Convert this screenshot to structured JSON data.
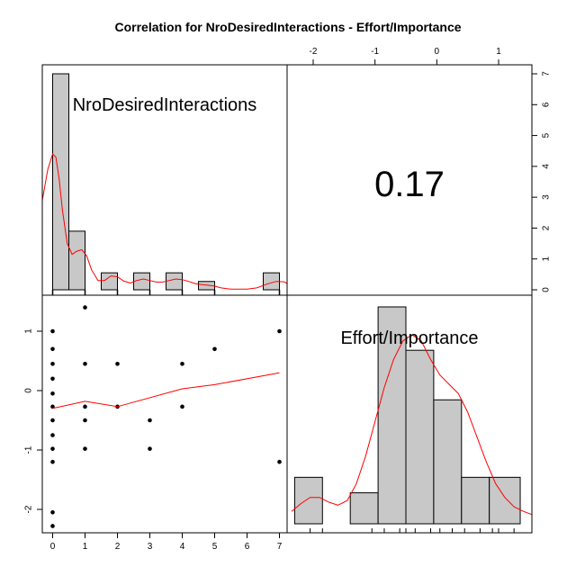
{
  "chart_data": {
    "type": "scatter-matrix",
    "title": "Correlation  for NroDesiredInteractions - Effort/Importance",
    "variables": [
      "NroDesiredInteractions",
      "Effort/Importance"
    ],
    "correlation": "0.17",
    "axes": {
      "nro": {
        "range": [
          0,
          7
        ],
        "ticks": [
          0,
          1,
          2,
          3,
          4,
          5,
          6,
          7
        ]
      },
      "effort": {
        "range": [
          -2.3,
          1.4
        ],
        "ticks": [
          -2,
          -1,
          0,
          1
        ]
      },
      "hist_count": {
        "range": [
          0,
          7
        ],
        "ticks": [
          0,
          1,
          2,
          3,
          4,
          5,
          6,
          7
        ]
      }
    },
    "histogram_nro": {
      "bins": [
        {
          "from": 0,
          "to": 0.5,
          "count": 7
        },
        {
          "from": 0.5,
          "to": 1,
          "count": 1.9
        },
        {
          "from": 1,
          "to": 1.5,
          "count": 0
        },
        {
          "from": 1.5,
          "to": 2,
          "count": 0.55
        },
        {
          "from": 2,
          "to": 2.5,
          "count": 0
        },
        {
          "from": 2.5,
          "to": 3,
          "count": 0.55
        },
        {
          "from": 3,
          "to": 3.5,
          "count": 0
        },
        {
          "from": 3.5,
          "to": 4,
          "count": 0.55
        },
        {
          "from": 4,
          "to": 4.5,
          "count": 0
        },
        {
          "from": 4.5,
          "to": 5,
          "count": 0.27
        },
        {
          "from": 5,
          "to": 5.5,
          "count": 0
        },
        {
          "from": 5.5,
          "to": 6,
          "count": 0
        },
        {
          "from": 6,
          "to": 6.5,
          "count": 0
        },
        {
          "from": 6.5,
          "to": 7,
          "count": 0.55
        }
      ],
      "density": [
        [
          -0.35,
          2.9
        ],
        [
          -0.15,
          3.9
        ],
        [
          0,
          4.4
        ],
        [
          0.1,
          4.3
        ],
        [
          0.2,
          3.6
        ],
        [
          0.3,
          2.6
        ],
        [
          0.45,
          1.5
        ],
        [
          0.6,
          1.15
        ],
        [
          0.75,
          1.25
        ],
        [
          0.9,
          1.3
        ],
        [
          1.05,
          1.1
        ],
        [
          1.2,
          0.65
        ],
        [
          1.4,
          0.3
        ],
        [
          1.6,
          0.3
        ],
        [
          1.8,
          0.45
        ],
        [
          2.0,
          0.42
        ],
        [
          2.2,
          0.28
        ],
        [
          2.4,
          0.22
        ],
        [
          2.6,
          0.3
        ],
        [
          2.8,
          0.35
        ],
        [
          3.0,
          0.3
        ],
        [
          3.2,
          0.25
        ],
        [
          3.4,
          0.25
        ],
        [
          3.6,
          0.3
        ],
        [
          3.8,
          0.35
        ],
        [
          4.0,
          0.33
        ],
        [
          4.2,
          0.27
        ],
        [
          4.4,
          0.2
        ],
        [
          4.6,
          0.17
        ],
        [
          4.8,
          0.15
        ],
        [
          5.0,
          0.12
        ],
        [
          5.2,
          0.06
        ],
        [
          5.5,
          0.02
        ],
        [
          6.0,
          0.02
        ],
        [
          6.3,
          0.06
        ],
        [
          6.6,
          0.18
        ],
        [
          6.9,
          0.27
        ],
        [
          7.15,
          0.26
        ],
        [
          7.3,
          0.2
        ]
      ],
      "rug": [
        0,
        1,
        2,
        3,
        4,
        5,
        7
      ]
    },
    "histogram_effort": {
      "bins": [
        {
          "from": -2.3,
          "to": -1.85,
          "count": 1.5
        },
        {
          "from": -1.85,
          "to": -1.4,
          "count": 0
        },
        {
          "from": -1.4,
          "to": -0.95,
          "count": 1
        },
        {
          "from": -0.95,
          "to": -0.5,
          "count": 7
        },
        {
          "from": -0.5,
          "to": -0.05,
          "count": 5.6
        },
        {
          "from": -0.05,
          "to": 0.4,
          "count": 4
        },
        {
          "from": 0.4,
          "to": 0.85,
          "count": 1.5
        },
        {
          "from": 0.85,
          "to": 1.35,
          "count": 1.5
        }
      ],
      "density": [
        [
          -2.35,
          0.4
        ],
        [
          -2.2,
          0.65
        ],
        [
          -2.05,
          0.85
        ],
        [
          -1.9,
          0.85
        ],
        [
          -1.75,
          0.7
        ],
        [
          -1.6,
          0.6
        ],
        [
          -1.45,
          0.75
        ],
        [
          -1.3,
          1.3
        ],
        [
          -1.15,
          2.2
        ],
        [
          -1.0,
          3.3
        ],
        [
          -0.85,
          4.4
        ],
        [
          -0.7,
          5.3
        ],
        [
          -0.55,
          5.9
        ],
        [
          -0.4,
          6.1
        ],
        [
          -0.25,
          5.9
        ],
        [
          -0.1,
          5.3
        ],
        [
          0.05,
          4.8
        ],
        [
          0.2,
          4.5
        ],
        [
          0.35,
          4.2
        ],
        [
          0.5,
          3.6
        ],
        [
          0.65,
          2.8
        ],
        [
          0.8,
          2.0
        ],
        [
          0.95,
          1.3
        ],
        [
          1.1,
          0.85
        ],
        [
          1.25,
          0.55
        ],
        [
          1.4,
          0.4
        ],
        [
          1.55,
          0.3
        ]
      ],
      "rug": [
        -2.05,
        -1.85,
        -1.05,
        -0.85,
        -0.6,
        -0.5,
        -0.35,
        -0.1,
        0.05,
        0.25,
        0.45,
        0.7,
        0.9,
        1.0,
        1.25
      ]
    },
    "scatter": {
      "points": [
        [
          0,
          1.0
        ],
        [
          0,
          0.7
        ],
        [
          0,
          0.45
        ],
        [
          0,
          0.2
        ],
        [
          0,
          -0.05
        ],
        [
          0,
          -0.27
        ],
        [
          0,
          -0.5
        ],
        [
          0,
          -0.75
        ],
        [
          0,
          -0.98
        ],
        [
          0,
          -1.2
        ],
        [
          0,
          -2.05
        ],
        [
          0,
          -2.28
        ],
        [
          1,
          1.4
        ],
        [
          1,
          0.45
        ],
        [
          1,
          -0.27
        ],
        [
          1,
          -0.5
        ],
        [
          1,
          -0.98
        ],
        [
          2,
          0.45
        ],
        [
          2,
          -0.27
        ],
        [
          3,
          -0.5
        ],
        [
          3,
          -0.98
        ],
        [
          4,
          0.45
        ],
        [
          4,
          -0.27
        ],
        [
          5,
          0.7
        ],
        [
          7,
          1.0
        ],
        [
          7,
          -1.2
        ]
      ],
      "smooth": [
        [
          0,
          -0.3
        ],
        [
          1,
          -0.18
        ],
        [
          2,
          -0.27
        ],
        [
          4,
          0.03
        ],
        [
          5,
          0.1
        ],
        [
          7,
          0.3
        ]
      ]
    },
    "colors": {
      "bar_fill": "#c8c8c8",
      "curve": "#ff0000",
      "ink": "#000000"
    }
  }
}
